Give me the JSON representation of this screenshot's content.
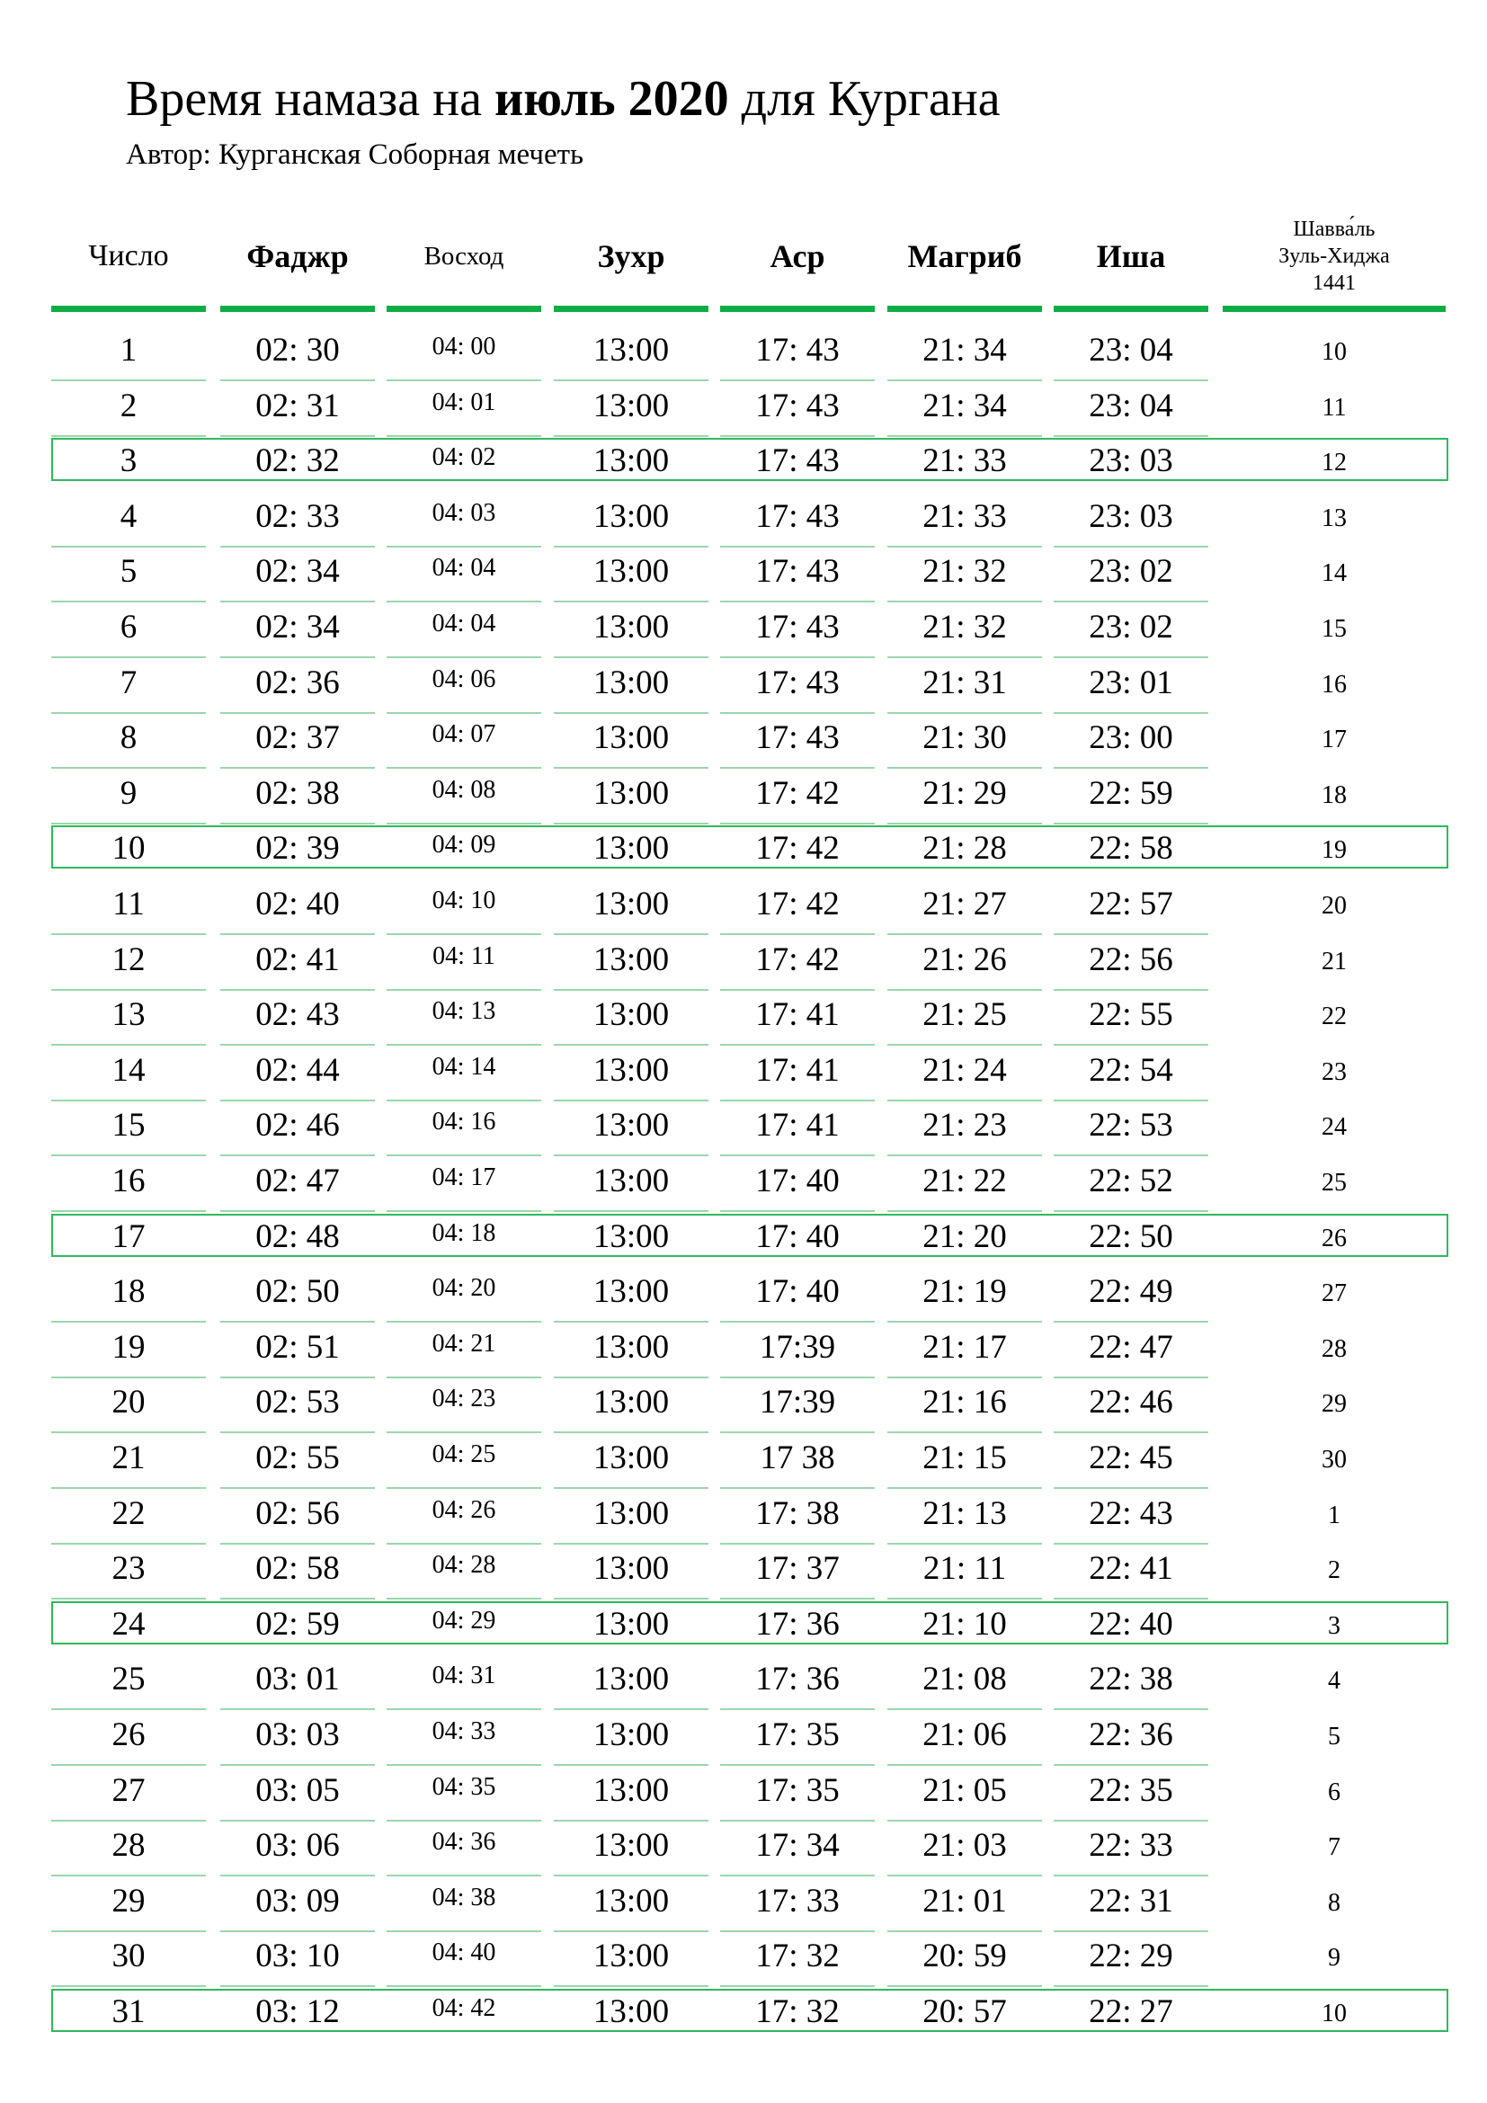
{
  "header": {
    "title_prefix": "Время намаза на ",
    "title_bold": "июль 2020",
    "title_suffix": " для Кургана",
    "subtitle": "Автор: Курганская Соборная мечеть"
  },
  "columns": {
    "day": "Число",
    "fajr": "Фаджр",
    "sunrise": "Восход",
    "dhuhr": "Зухр",
    "asr": "Аср",
    "maghrib": "Магриб",
    "isha": "Иша",
    "hijri_line1": "Шавва́ль",
    "hijri_line2": "Зуль-Хиджа",
    "hijri_line3": "1441"
  },
  "accent_color": "#0fae45",
  "rows": [
    {
      "day": "1",
      "fajr": "02: 30",
      "sunrise": "04: 00",
      "dhuhr": "13:00",
      "asr": "17: 43",
      "maghrib": "21: 34",
      "isha": "23: 04",
      "hijri": "10",
      "highlight": false
    },
    {
      "day": "2",
      "fajr": "02: 31",
      "sunrise": "04: 01",
      "dhuhr": "13:00",
      "asr": "17: 43",
      "maghrib": "21: 34",
      "isha": "23: 04",
      "hijri": "11",
      "highlight": false
    },
    {
      "day": "3",
      "fajr": "02: 32",
      "sunrise": "04: 02",
      "dhuhr": "13:00",
      "asr": "17: 43",
      "maghrib": "21: 33",
      "isha": "23: 03",
      "hijri": "12",
      "highlight": true
    },
    {
      "day": "4",
      "fajr": "02: 33",
      "sunrise": "04: 03",
      "dhuhr": "13:00",
      "asr": "17: 43",
      "maghrib": "21: 33",
      "isha": "23: 03",
      "hijri": "13",
      "highlight": false
    },
    {
      "day": "5",
      "fajr": "02: 34",
      "sunrise": "04: 04",
      "dhuhr": "13:00",
      "asr": "17: 43",
      "maghrib": "21: 32",
      "isha": "23: 02",
      "hijri": "14",
      "highlight": false
    },
    {
      "day": "6",
      "fajr": "02: 34",
      "sunrise": "04: 04",
      "dhuhr": "13:00",
      "asr": "17: 43",
      "maghrib": "21: 32",
      "isha": "23: 02",
      "hijri": "15",
      "highlight": false
    },
    {
      "day": "7",
      "fajr": "02: 36",
      "sunrise": "04: 06",
      "dhuhr": "13:00",
      "asr": "17: 43",
      "maghrib": "21: 31",
      "isha": "23: 01",
      "hijri": "16",
      "highlight": false
    },
    {
      "day": "8",
      "fajr": "02: 37",
      "sunrise": "04: 07",
      "dhuhr": "13:00",
      "asr": "17: 43",
      "maghrib": "21: 30",
      "isha": "23: 00",
      "hijri": "17",
      "highlight": false
    },
    {
      "day": "9",
      "fajr": "02: 38",
      "sunrise": "04: 08",
      "dhuhr": "13:00",
      "asr": "17: 42",
      "maghrib": "21: 29",
      "isha": "22: 59",
      "hijri": "18",
      "highlight": false
    },
    {
      "day": "10",
      "fajr": "02: 39",
      "sunrise": "04: 09",
      "dhuhr": "13:00",
      "asr": "17: 42",
      "maghrib": "21: 28",
      "isha": "22: 58",
      "hijri": "19",
      "highlight": true
    },
    {
      "day": "11",
      "fajr": "02: 40",
      "sunrise": "04: 10",
      "dhuhr": "13:00",
      "asr": "17: 42",
      "maghrib": "21: 27",
      "isha": "22: 57",
      "hijri": "20",
      "highlight": false
    },
    {
      "day": "12",
      "fajr": "02: 41",
      "sunrise": "04: 11",
      "dhuhr": "13:00",
      "asr": "17: 42",
      "maghrib": "21: 26",
      "isha": "22: 56",
      "hijri": "21",
      "highlight": false
    },
    {
      "day": "13",
      "fajr": "02: 43",
      "sunrise": "04: 13",
      "dhuhr": "13:00",
      "asr": "17: 41",
      "maghrib": "21: 25",
      "isha": "22: 55",
      "hijri": "22",
      "highlight": false
    },
    {
      "day": "14",
      "fajr": "02: 44",
      "sunrise": "04: 14",
      "dhuhr": "13:00",
      "asr": "17: 41",
      "maghrib": "21: 24",
      "isha": "22: 54",
      "hijri": "23",
      "highlight": false
    },
    {
      "day": "15",
      "fajr": "02: 46",
      "sunrise": "04: 16",
      "dhuhr": "13:00",
      "asr": "17: 41",
      "maghrib": "21: 23",
      "isha": "22: 53",
      "hijri": "24",
      "highlight": false
    },
    {
      "day": "16",
      "fajr": "02: 47",
      "sunrise": "04: 17",
      "dhuhr": "13:00",
      "asr": "17: 40",
      "maghrib": "21: 22",
      "isha": "22: 52",
      "hijri": "25",
      "highlight": false
    },
    {
      "day": "17",
      "fajr": "02: 48",
      "sunrise": "04: 18",
      "dhuhr": "13:00",
      "asr": "17: 40",
      "maghrib": "21: 20",
      "isha": "22: 50",
      "hijri": "26",
      "highlight": true
    },
    {
      "day": "18",
      "fajr": "02: 50",
      "sunrise": "04: 20",
      "dhuhr": "13:00",
      "asr": "17: 40",
      "maghrib": "21: 19",
      "isha": "22: 49",
      "hijri": "27",
      "highlight": false
    },
    {
      "day": "19",
      "fajr": "02: 51",
      "sunrise": "04: 21",
      "dhuhr": "13:00",
      "asr": "17:39",
      "maghrib": "21: 17",
      "isha": "22: 47",
      "hijri": "28",
      "highlight": false
    },
    {
      "day": "20",
      "fajr": "02: 53",
      "sunrise": "04: 23",
      "dhuhr": "13:00",
      "asr": "17:39",
      "maghrib": "21: 16",
      "isha": "22: 46",
      "hijri": "29",
      "highlight": false
    },
    {
      "day": "21",
      "fajr": "02: 55",
      "sunrise": "04: 25",
      "dhuhr": "13:00",
      "asr": "17 38",
      "maghrib": "21: 15",
      "isha": "22: 45",
      "hijri": "30",
      "highlight": false
    },
    {
      "day": "22",
      "fajr": "02: 56",
      "sunrise": "04: 26",
      "dhuhr": "13:00",
      "asr": "17: 38",
      "maghrib": "21: 13",
      "isha": "22: 43",
      "hijri": "1",
      "highlight": false
    },
    {
      "day": "23",
      "fajr": "02: 58",
      "sunrise": "04: 28",
      "dhuhr": "13:00",
      "asr": "17: 37",
      "maghrib": "21: 11",
      "isha": "22: 41",
      "hijri": "2",
      "highlight": false
    },
    {
      "day": "24",
      "fajr": "02: 59",
      "sunrise": "04: 29",
      "dhuhr": "13:00",
      "asr": "17: 36",
      "maghrib": "21: 10",
      "isha": "22: 40",
      "hijri": "3",
      "highlight": true
    },
    {
      "day": "25",
      "fajr": "03: 01",
      "sunrise": "04: 31",
      "dhuhr": "13:00",
      "asr": "17: 36",
      "maghrib": "21: 08",
      "isha": "22: 38",
      "hijri": "4",
      "highlight": false
    },
    {
      "day": "26",
      "fajr": "03: 03",
      "sunrise": "04: 33",
      "dhuhr": "13:00",
      "asr": "17: 35",
      "maghrib": "21: 06",
      "isha": "22: 36",
      "hijri": "5",
      "highlight": false
    },
    {
      "day": "27",
      "fajr": "03: 05",
      "sunrise": "04: 35",
      "dhuhr": "13:00",
      "asr": "17: 35",
      "maghrib": "21: 05",
      "isha": "22: 35",
      "hijri": "6",
      "highlight": false
    },
    {
      "day": "28",
      "fajr": "03: 06",
      "sunrise": "04: 36",
      "dhuhr": "13:00",
      "asr": "17: 34",
      "maghrib": "21: 03",
      "isha": "22: 33",
      "hijri": "7",
      "highlight": false
    },
    {
      "day": "29",
      "fajr": "03: 09",
      "sunrise": "04: 38",
      "dhuhr": "13:00",
      "asr": "17: 33",
      "maghrib": "21: 01",
      "isha": "22: 31",
      "hijri": "8",
      "highlight": false
    },
    {
      "day": "30",
      "fajr": "03: 10",
      "sunrise": "04: 40",
      "dhuhr": "13:00",
      "asr": "17: 32",
      "maghrib": "20: 59",
      "isha": "22: 29",
      "hijri": "9",
      "highlight": false
    },
    {
      "day": "31",
      "fajr": "03: 12",
      "sunrise": "04: 42",
      "dhuhr": "13:00",
      "asr": "17: 32",
      "maghrib": "20: 57",
      "isha": "22: 27",
      "hijri": "10",
      "highlight": true
    }
  ]
}
